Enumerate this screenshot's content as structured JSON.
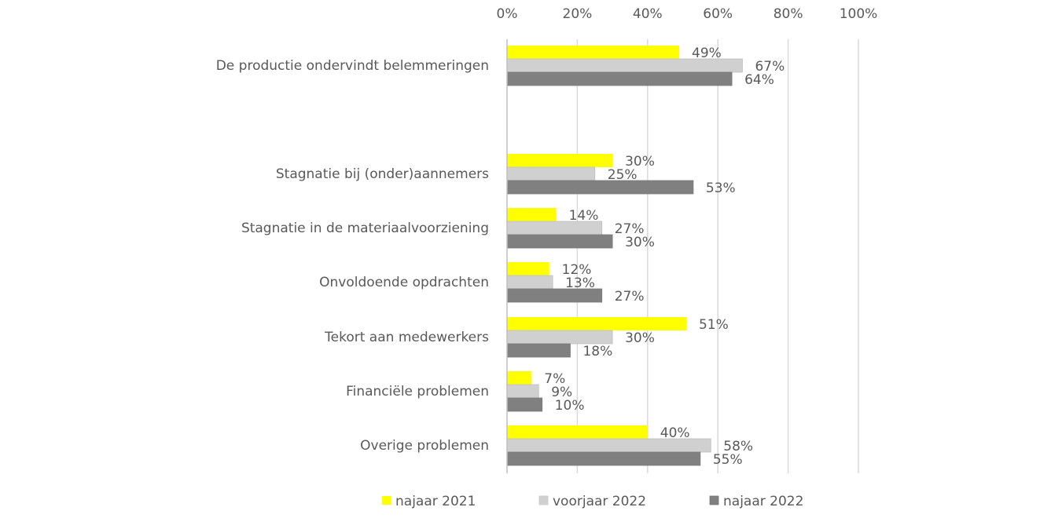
{
  "chart_data": {
    "type": "bar",
    "orientation": "horizontal",
    "title": "",
    "xlabel": "",
    "ylabel": "",
    "xlim": [
      0,
      100
    ],
    "x_ticks": [
      "0%",
      "20%",
      "40%",
      "60%",
      "80%",
      "100%"
    ],
    "x_tick_values": [
      0,
      20,
      40,
      60,
      80,
      100
    ],
    "grid": true,
    "legend_position": "bottom",
    "categories": [
      "De productie ondervindt belemmeringen",
      "",
      "Stagnatie bij (onder)aannemers",
      "Stagnatie in de materiaalvoorziening",
      "Onvoldoende opdrachten",
      "Tekort aan medewerkers",
      "Financiële problemen",
      "Overige problemen"
    ],
    "series": [
      {
        "name": "najaar 2021",
        "color": "#ffff00",
        "values": [
          49,
          null,
          30,
          14,
          12,
          51,
          7,
          40
        ],
        "labels": [
          "49%",
          null,
          "30%",
          "14%",
          "12%",
          "51%",
          "7%",
          "40%"
        ]
      },
      {
        "name": "voorjaar 2022",
        "color": "#d0d0d0",
        "values": [
          67,
          null,
          25,
          27,
          13,
          30,
          9,
          58
        ],
        "labels": [
          "67%",
          null,
          "25%",
          "27%",
          "13%",
          "30%",
          "9%",
          "58%"
        ]
      },
      {
        "name": "najaar 2022",
        "color": "#808080",
        "values": [
          64,
          null,
          53,
          30,
          27,
          18,
          10,
          55
        ],
        "labels": [
          "64%",
          null,
          "53%",
          "30%",
          "27%",
          "18%",
          "10%",
          "55%"
        ]
      }
    ]
  }
}
